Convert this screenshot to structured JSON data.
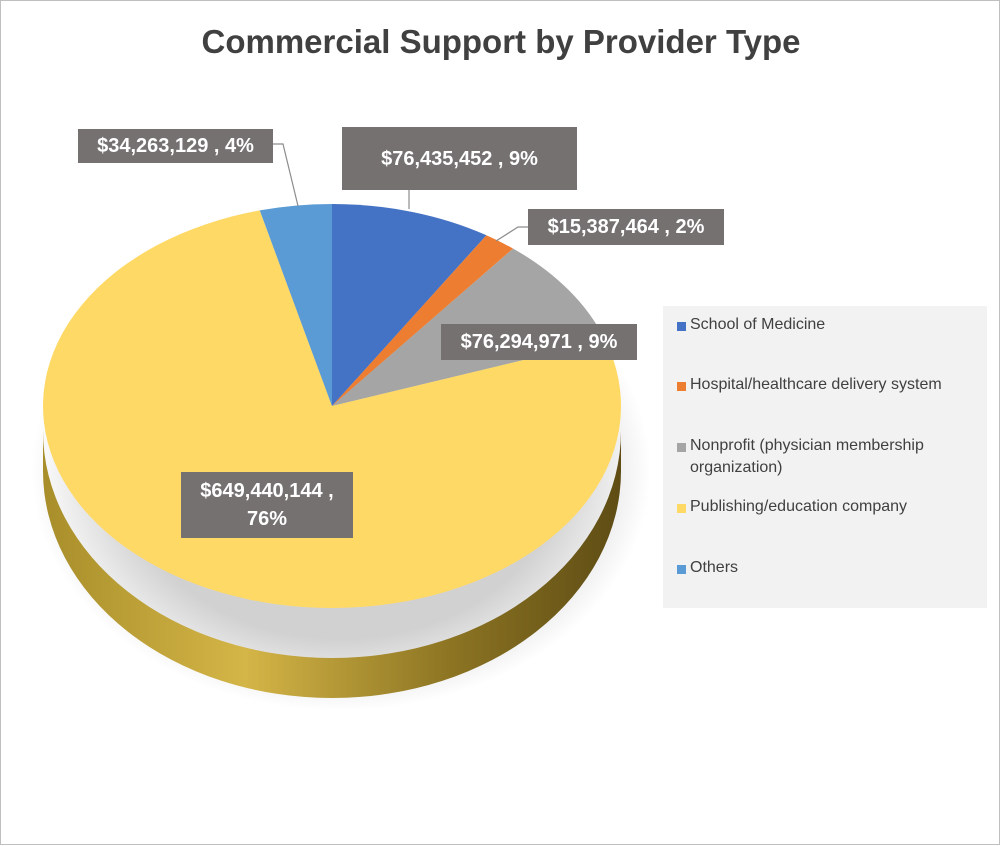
{
  "chart_data": {
    "type": "pie",
    "title": "Commercial Support by Provider Type",
    "slices": [
      {
        "name": "School of Medicine",
        "value": 76435452,
        "percent": 9,
        "label": "$76,435,452 , 9%",
        "color": "#4472c4"
      },
      {
        "name": "Hospital/healthcare delivery system",
        "value": 15387464,
        "percent": 2,
        "label": "$15,387,464 , 2%",
        "color": "#ed7d31"
      },
      {
        "name": "Nonprofit (physician membership organization)",
        "value": 76294971,
        "percent": 9,
        "label": "$76,294,971 , 9%",
        "color": "#a5a5a5"
      },
      {
        "name": "Publishing/education company",
        "value": 649440144,
        "percent": 76,
        "label": "$649,440,144 , 76%",
        "color": "#ffd966"
      },
      {
        "name": "Others",
        "value": 34263129,
        "percent": 4,
        "label": "$34,263,129 , 4%",
        "color": "#5b9bd5"
      }
    ],
    "legend_position": "right",
    "style": "3d-pie"
  }
}
